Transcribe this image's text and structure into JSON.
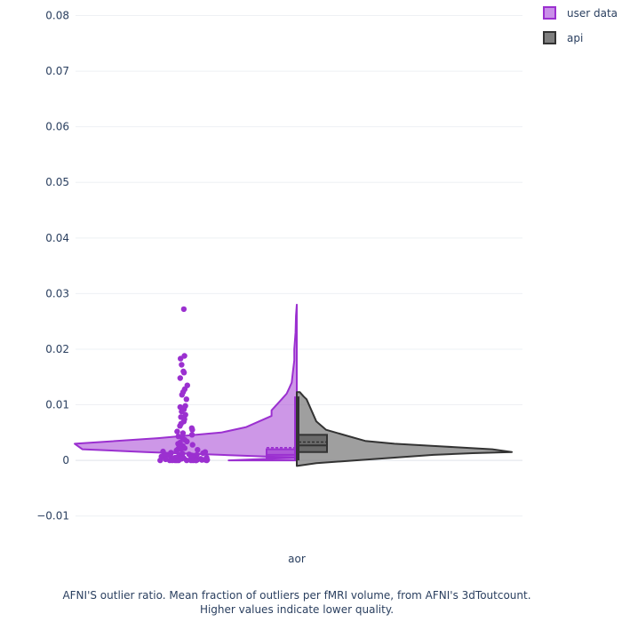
{
  "chart_data": {
    "type": "violin",
    "categories": [
      "aor"
    ],
    "ylim": [
      -0.015,
      0.082
    ],
    "yticks": [
      -0.01,
      0,
      0.01,
      0.02,
      0.03,
      0.04,
      0.05,
      0.06,
      0.07,
      0.08
    ],
    "ytick_labels": [
      "−0.01",
      "0",
      "0.01",
      "0.02",
      "0.03",
      "0.04",
      "0.05",
      "0.06",
      "0.07",
      "0.08"
    ],
    "grid": true,
    "legend_position": "top-right",
    "series": [
      {
        "name": "user data",
        "color": "#9b30d0",
        "side": "negative",
        "box": {
          "q1": 0.0005,
          "median": 0.001,
          "q3": 0.002,
          "mean": 0.0023,
          "lower_fence": 0.0,
          "upper_fence": 0.0115
        },
        "density_profile": [
          [
            0.0027,
            0.0
          ],
          [
            0.0,
            0.0005
          ],
          [
            -0.003,
            0.001
          ],
          [
            -0.006,
            0.0015
          ],
          [
            -0.0085,
            0.002
          ],
          [
            -0.0088,
            0.003
          ],
          [
            -0.0055,
            0.004
          ],
          [
            -0.003,
            0.005
          ],
          [
            -0.002,
            0.006
          ],
          [
            -0.0015,
            0.007
          ],
          [
            -0.001,
            0.008
          ],
          [
            -0.001,
            0.009
          ],
          [
            -0.0008,
            0.01
          ],
          [
            -0.0006,
            0.011
          ],
          [
            -0.0004,
            0.012
          ],
          [
            -0.0003,
            0.013
          ],
          [
            -0.0002,
            0.014
          ],
          [
            -0.00015,
            0.016
          ],
          [
            -0.0001,
            0.018
          ],
          [
            -0.0001,
            0.02
          ],
          [
            -5e-05,
            0.023
          ],
          [
            -3e-05,
            0.026
          ],
          [
            0.0,
            0.028
          ]
        ],
        "points": [
          0.0272,
          0.0188,
          0.0183,
          0.0172,
          0.016,
          0.0158,
          0.0148,
          0.0135,
          0.0128,
          0.0123,
          0.0118,
          0.011,
          0.0098,
          0.0096,
          0.0092,
          0.0088,
          0.0082,
          0.0078,
          0.0074,
          0.007,
          0.0066,
          0.0062,
          0.0058,
          0.0055,
          0.0052,
          0.0049,
          0.0046,
          0.0043,
          0.004,
          0.0037,
          0.0034,
          0.0032,
          0.003,
          0.0028,
          0.0026,
          0.0024,
          0.0022,
          0.002,
          0.002,
          0.0019,
          0.0018,
          0.0017,
          0.0016,
          0.0015,
          0.0014,
          0.0013,
          0.0012,
          0.0012,
          0.0011,
          0.001,
          0.001,
          0.0009,
          0.0009,
          0.0008,
          0.0008,
          0.0007,
          0.0007,
          0.0006,
          0.0006,
          0.0005,
          0.0005,
          0.0005,
          0.0004,
          0.0004,
          0.0004,
          0.0003,
          0.0003,
          0.0003,
          0.0003,
          0.0002,
          0.0002,
          0.0002,
          0.0002,
          0.0001,
          0.0001,
          0.0001,
          0.0001,
          0.0001,
          0.0,
          0.0,
          0.0,
          0.0,
          0.0,
          0.0,
          0.0,
          0.0,
          0.0,
          0.0,
          0.0,
          0.0
        ]
      },
      {
        "name": "api",
        "color": "#7f7f7f",
        "side": "positive",
        "box": {
          "q1": 0.0015,
          "median": 0.0027,
          "q3": 0.0046,
          "mean": 0.0033,
          "lower_fence": 0.0,
          "upper_fence": 0.0115
        },
        "density_profile": [
          [
            0.0,
            -0.001
          ],
          [
            0.02,
            -0.0005
          ],
          [
            0.06,
            0.0
          ],
          [
            0.1,
            0.0005
          ],
          [
            0.14,
            0.001
          ],
          [
            0.18,
            0.0013
          ],
          [
            0.22,
            0.0015
          ],
          [
            0.2,
            0.002
          ],
          [
            0.15,
            0.0025
          ],
          [
            0.1,
            0.003
          ],
          [
            0.07,
            0.0035
          ],
          [
            0.05,
            0.0045
          ],
          [
            0.03,
            0.0055
          ],
          [
            0.02,
            0.007
          ],
          [
            0.015,
            0.009
          ],
          [
            0.01,
            0.011
          ],
          [
            0.007,
            0.0115
          ],
          [
            0.003,
            0.0123
          ],
          [
            0.0,
            0.0123
          ]
        ]
      }
    ]
  },
  "caption": {
    "line1": "AFNI'S outlier ratio. Mean fraction of outliers per fMRI volume, from AFNI's 3dToutcount.",
    "line2": "Higher values indicate lower quality."
  }
}
